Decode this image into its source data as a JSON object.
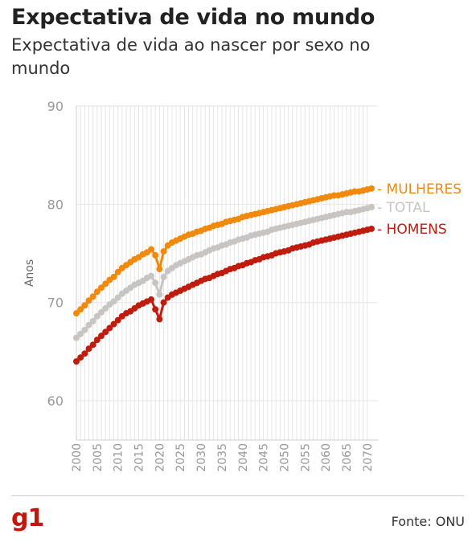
{
  "header": {
    "title": "Expectativa de vida no mundo",
    "subtitle": "Expectativa de vida ao nascer por sexo no mundo"
  },
  "footer": {
    "logo": "g1",
    "source": "Fonte: ONU"
  },
  "colors": {
    "mulheres": "#f0890c",
    "total": "#c8c4c2",
    "homens": "#bf1c0e",
    "grid": "#e6e6e6",
    "axis_text": "#999999"
  },
  "chart_data": {
    "type": "line",
    "title": "Expectativa de vida no mundo",
    "subtitle": "Expectativa de vida ao nascer por sexo no mundo",
    "ylabel": "Anos",
    "xlabel": "",
    "xlim": [
      2000,
      2071
    ],
    "ylim": [
      56,
      90
    ],
    "yticks": [
      60,
      70,
      80,
      90
    ],
    "xticks": [
      2000,
      2005,
      2010,
      2015,
      2020,
      2025,
      2030,
      2035,
      2040,
      2045,
      2050,
      2055,
      2060,
      2065,
      2070
    ],
    "grid": true,
    "legend": "direct labels at right end of lines",
    "series": [
      {
        "name": "MULHERES",
        "key": "mulheres",
        "x": [
          2000,
          2001,
          2002,
          2003,
          2004,
          2005,
          2006,
          2007,
          2008,
          2009,
          2010,
          2011,
          2012,
          2013,
          2014,
          2015,
          2016,
          2017,
          2018,
          2019,
          2020,
          2021,
          2022,
          2023,
          2024,
          2025,
          2026,
          2027,
          2028,
          2029,
          2030,
          2031,
          2032,
          2033,
          2034,
          2035,
          2036,
          2037,
          2038,
          2039,
          2040,
          2041,
          2042,
          2043,
          2044,
          2045,
          2046,
          2047,
          2048,
          2049,
          2050,
          2051,
          2052,
          2053,
          2054,
          2055,
          2056,
          2057,
          2058,
          2059,
          2060,
          2061,
          2062,
          2063,
          2064,
          2065,
          2066,
          2067,
          2068,
          2069,
          2070,
          2071
        ],
        "values": [
          68.9,
          69.3,
          69.7,
          70.2,
          70.6,
          71.1,
          71.5,
          71.9,
          72.3,
          72.6,
          73.1,
          73.5,
          73.8,
          74.1,
          74.4,
          74.6,
          74.9,
          75.1,
          75.4,
          74.8,
          73.4,
          75.2,
          75.8,
          76.1,
          76.3,
          76.5,
          76.7,
          76.9,
          77.0,
          77.2,
          77.3,
          77.5,
          77.6,
          77.8,
          77.9,
          78.0,
          78.2,
          78.3,
          78.4,
          78.5,
          78.7,
          78.8,
          78.9,
          79.0,
          79.1,
          79.2,
          79.3,
          79.4,
          79.5,
          79.6,
          79.7,
          79.8,
          79.9,
          80.0,
          80.1,
          80.2,
          80.3,
          80.4,
          80.5,
          80.6,
          80.7,
          80.8,
          80.9,
          80.9,
          81.0,
          81.1,
          81.2,
          81.3,
          81.3,
          81.4,
          81.5,
          81.6
        ]
      },
      {
        "name": "TOTAL",
        "key": "total",
        "x": [
          2000,
          2001,
          2002,
          2003,
          2004,
          2005,
          2006,
          2007,
          2008,
          2009,
          2010,
          2011,
          2012,
          2013,
          2014,
          2015,
          2016,
          2017,
          2018,
          2019,
          2020,
          2021,
          2022,
          2023,
          2024,
          2025,
          2026,
          2027,
          2028,
          2029,
          2030,
          2031,
          2032,
          2033,
          2034,
          2035,
          2036,
          2037,
          2038,
          2039,
          2040,
          2041,
          2042,
          2043,
          2044,
          2045,
          2046,
          2047,
          2048,
          2049,
          2050,
          2051,
          2052,
          2053,
          2054,
          2055,
          2056,
          2057,
          2058,
          2059,
          2060,
          2061,
          2062,
          2063,
          2064,
          2065,
          2066,
          2067,
          2068,
          2069,
          2070,
          2071
        ],
        "values": [
          66.4,
          66.8,
          67.2,
          67.7,
          68.1,
          68.6,
          69.0,
          69.4,
          69.8,
          70.1,
          70.5,
          70.9,
          71.2,
          71.5,
          71.8,
          72.0,
          72.2,
          72.5,
          72.7,
          72.0,
          70.8,
          72.6,
          73.2,
          73.5,
          73.8,
          74.0,
          74.2,
          74.4,
          74.6,
          74.8,
          74.9,
          75.1,
          75.3,
          75.5,
          75.6,
          75.8,
          75.9,
          76.1,
          76.2,
          76.4,
          76.5,
          76.6,
          76.8,
          76.9,
          77.0,
          77.1,
          77.2,
          77.4,
          77.5,
          77.6,
          77.7,
          77.8,
          77.9,
          78.0,
          78.1,
          78.2,
          78.3,
          78.4,
          78.5,
          78.6,
          78.7,
          78.8,
          78.9,
          79.0,
          79.1,
          79.2,
          79.2,
          79.3,
          79.4,
          79.5,
          79.6,
          79.7
        ]
      },
      {
        "name": "HOMENS",
        "key": "homens",
        "x": [
          2000,
          2001,
          2002,
          2003,
          2004,
          2005,
          2006,
          2007,
          2008,
          2009,
          2010,
          2011,
          2012,
          2013,
          2014,
          2015,
          2016,
          2017,
          2018,
          2019,
          2020,
          2021,
          2022,
          2023,
          2024,
          2025,
          2026,
          2027,
          2028,
          2029,
          2030,
          2031,
          2032,
          2033,
          2034,
          2035,
          2036,
          2037,
          2038,
          2039,
          2040,
          2041,
          2042,
          2043,
          2044,
          2045,
          2046,
          2047,
          2048,
          2049,
          2050,
          2051,
          2052,
          2053,
          2054,
          2055,
          2056,
          2057,
          2058,
          2059,
          2060,
          2061,
          2062,
          2063,
          2064,
          2065,
          2066,
          2067,
          2068,
          2069,
          2070,
          2071
        ],
        "values": [
          64.0,
          64.4,
          64.8,
          65.3,
          65.7,
          66.2,
          66.6,
          67.0,
          67.4,
          67.8,
          68.2,
          68.6,
          68.9,
          69.1,
          69.4,
          69.7,
          69.9,
          70.1,
          70.3,
          69.3,
          68.3,
          70.0,
          70.5,
          70.8,
          71.0,
          71.2,
          71.4,
          71.6,
          71.8,
          72.0,
          72.2,
          72.4,
          72.5,
          72.7,
          72.9,
          73.0,
          73.2,
          73.4,
          73.5,
          73.7,
          73.8,
          74.0,
          74.1,
          74.3,
          74.4,
          74.6,
          74.7,
          74.8,
          75.0,
          75.1,
          75.2,
          75.3,
          75.5,
          75.6,
          75.7,
          75.8,
          75.9,
          76.1,
          76.2,
          76.3,
          76.4,
          76.5,
          76.6,
          76.7,
          76.8,
          76.9,
          77.0,
          77.1,
          77.2,
          77.3,
          77.4,
          77.5
        ]
      }
    ]
  }
}
